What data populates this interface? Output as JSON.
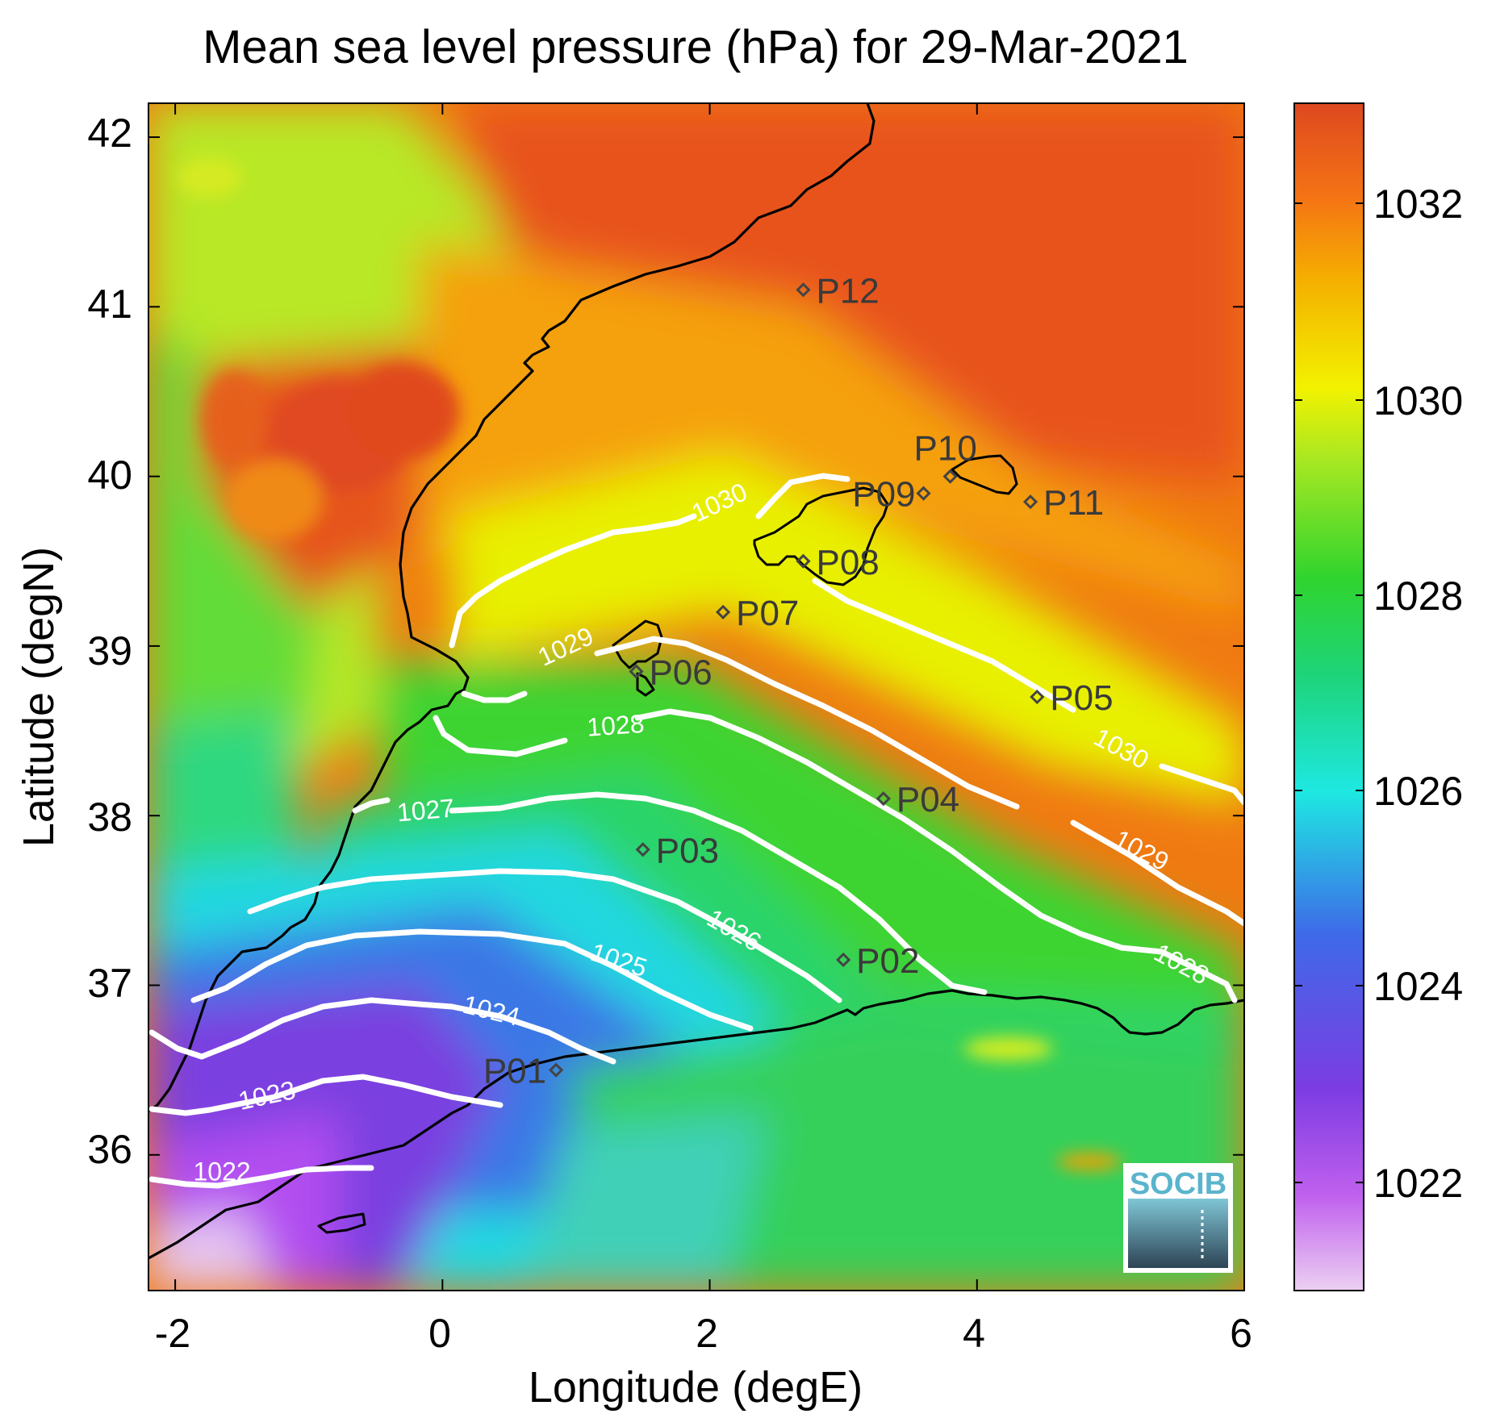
{
  "title": "Mean sea level pressure (hPa) for 29-Mar-2021",
  "xlabel": "Longitude (degE)",
  "ylabel": "Latitude (degN)",
  "x_ticks": [
    "-2",
    "0",
    "2",
    "4",
    "6"
  ],
  "y_ticks": [
    "36",
    "37",
    "38",
    "39",
    "40",
    "41",
    "42"
  ],
  "colorbar_ticks": [
    "1022",
    "1024",
    "1026",
    "1028",
    "1030",
    "1032"
  ],
  "colorbar_range": [
    1021,
    1033
  ],
  "logo_text": "SOCIB",
  "colors": {
    "colormap": [
      "#e8c8f0",
      "#b44cf0",
      "#7a3ce0",
      "#3a5ae8",
      "#1ee6e0",
      "#1fd27a",
      "#2ed42e",
      "#9ae622",
      "#f0f000",
      "#f5b800",
      "#f57a10",
      "#e04a1e"
    ],
    "contour": "#ffffff",
    "coast": "#000000",
    "station_marker": "#444444"
  },
  "chart_data": {
    "type": "contour-map",
    "title": "Mean sea level pressure (hPa) for 29-Mar-2021",
    "xlabel": "Longitude (degE)",
    "ylabel": "Latitude (degN)",
    "xlim": [
      -2.2,
      6.0
    ],
    "ylim": [
      35.2,
      42.2
    ],
    "contour_levels": [
      {
        "level": "1022",
        "label_pos": [
          -1.65,
          35.85
        ]
      },
      {
        "level": "1023",
        "label_pos": [
          -1.3,
          36.3
        ]
      },
      {
        "level": "1024",
        "label_pos": [
          0.35,
          36.8
        ]
      },
      {
        "level": "1025",
        "label_pos": [
          1.3,
          37.1
        ]
      },
      {
        "level": "1026",
        "label_pos": [
          2.15,
          37.28
        ]
      },
      {
        "level": "1027",
        "label_pos": [
          -0.12,
          37.98
        ]
      },
      {
        "level": "1028",
        "label_pos": [
          1.3,
          38.48
        ]
      },
      {
        "level": "1028",
        "label_pos": [
          5.5,
          37.08
        ]
      },
      {
        "level": "1029",
        "label_pos": [
          0.95,
          38.95
        ]
      },
      {
        "level": "1029",
        "label_pos": [
          5.2,
          37.75
        ]
      },
      {
        "level": "1030",
        "label_pos": [
          2.1,
          39.8
        ]
      },
      {
        "level": "1030",
        "label_pos": [
          5.05,
          38.35
        ]
      }
    ],
    "stations": [
      {
        "name": "P01",
        "lon": 0.85,
        "lat": 36.5
      },
      {
        "name": "P02",
        "lon": 3.0,
        "lat": 37.15
      },
      {
        "name": "P03",
        "lon": 1.5,
        "lat": 37.8
      },
      {
        "name": "P04",
        "lon": 3.3,
        "lat": 38.1
      },
      {
        "name": "P05",
        "lon": 4.45,
        "lat": 38.7
      },
      {
        "name": "P06",
        "lon": 1.45,
        "lat": 38.85
      },
      {
        "name": "P07",
        "lon": 2.1,
        "lat": 39.2
      },
      {
        "name": "P08",
        "lon": 2.7,
        "lat": 39.5
      },
      {
        "name": "P09",
        "lon": 3.6,
        "lat": 39.9
      },
      {
        "name": "P10",
        "lon": 3.8,
        "lat": 40.0
      },
      {
        "name": "P11",
        "lon": 4.4,
        "lat": 39.85
      },
      {
        "name": "P12",
        "lon": 2.7,
        "lat": 41.1
      }
    ]
  }
}
